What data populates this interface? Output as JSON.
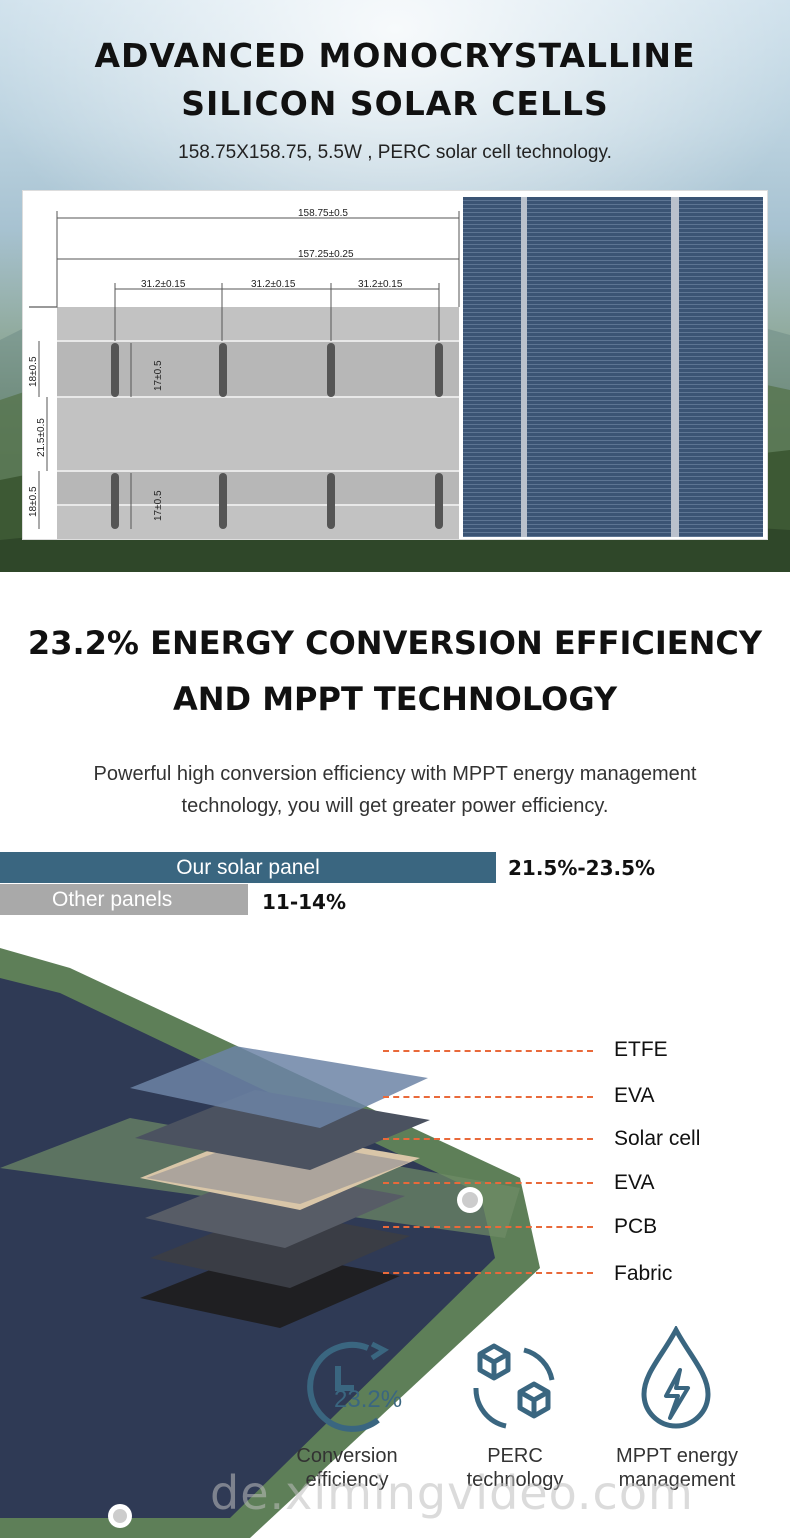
{
  "hero": {
    "title_line1": "ADVANCED MONOCRYSTALLINE",
    "title_line2": "SILICON SOLAR CELLS",
    "subtitle": "158.75X158.75,   5.5W ,   PERC solar cell technology."
  },
  "drawing": {
    "dim_total": "158.75±0.5",
    "dim_inner": "157.25±0.25",
    "dim_pitch": [
      "31.2±0.15",
      "31.2±0.15",
      "31.2±0.15"
    ],
    "dim_pad_upper": "18±0.5",
    "dim_gap": "21.5±0.5",
    "dim_pad_lower": "18±0.5",
    "dim_slot_upper": "17±0.5",
    "dim_slot_lower": "17±0.5"
  },
  "efficiency": {
    "title_line1": "23.2% ENERGY CONVERSION EFFICIENCY",
    "title_line2": "AND MPPT TECHNOLOGY",
    "desc_line1": "Powerful high conversion efficiency with MPPT energy management",
    "desc_line2": "technology, you will get greater power efficiency.",
    "bars": [
      {
        "label": "Our solar panel",
        "value": "21.5%-23.5%"
      },
      {
        "label": "Other panels",
        "value": "11-14%"
      }
    ]
  },
  "layers": {
    "items": [
      "ETFE",
      "EVA",
      "Solar cell",
      "EVA",
      "PCB",
      "Fabric"
    ],
    "accent_color": "#e9693a"
  },
  "features": {
    "percent": "23.2%",
    "items": [
      {
        "icon": "clock-icon",
        "line1": "Conversion",
        "line2": "efficiency"
      },
      {
        "icon": "cubes-icon",
        "line1": "PERC",
        "line2": "technology"
      },
      {
        "icon": "drop-bolt-icon",
        "line1": "MPPT energy",
        "line2": "management"
      }
    ],
    "icon_color": "#3a6680"
  },
  "watermark": "de.ximingvideo.com"
}
